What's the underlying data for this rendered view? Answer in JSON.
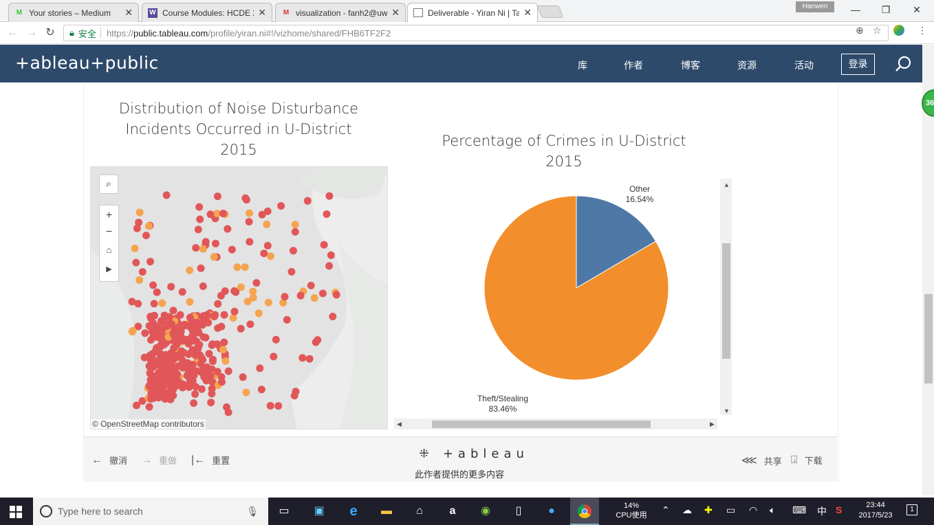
{
  "browser": {
    "tabs": [
      {
        "title": "Your stories – Medium",
        "icon": "medium-icon"
      },
      {
        "title": "Course Modules: HCDE 2",
        "icon": "canvas-w-icon"
      },
      {
        "title": "visualization - fanh2@uw",
        "icon": "gmail-icon"
      },
      {
        "title": "Deliverable - Yiran Ni | Ta",
        "icon": "page-icon"
      }
    ],
    "profile_name": "Hanwen",
    "secure_label": "安全",
    "url_prefix": "https://",
    "url_domain": "public.tableau.com",
    "url_path": "/profile/yiran.ni#!/vizhome/shared/FHB6TF2F2"
  },
  "site_nav": {
    "logo": "+ableau+public",
    "items": [
      "库",
      "作者",
      "博客",
      "资源",
      "活动"
    ],
    "login": "登录"
  },
  "badge": "36",
  "viz": {
    "map_title_lines": [
      "Distribution of Noise Disturbance",
      "Incidents Occurred in U-District",
      "2015"
    ],
    "pie_title_lines": [
      "Percentage of Crimes in U-District",
      "2015"
    ],
    "map_attribution": "© OpenStreetMap contributors",
    "colors": {
      "other": "#4e79a7",
      "theft": "#f28e2b",
      "dot_red": "#e15759",
      "dot_orange": "#f5a44f"
    }
  },
  "chart_data": {
    "type": "pie",
    "title": "Percentage of Crimes in U-District 2015",
    "slices": [
      {
        "name": "Other",
        "label": "16.54%",
        "value": 16.54
      },
      {
        "name": "Theft/Stealing",
        "label": "83.46%",
        "value": 83.46
      }
    ]
  },
  "toolbar": {
    "undo": "撤消",
    "redo": "重做",
    "reset": "重置",
    "brand": "+ableau",
    "more": "此作者提供的更多内容",
    "share": "共享",
    "download": "下载"
  },
  "taskbar": {
    "search_placeholder": "Type here to search",
    "cpu_percent": "14%",
    "cpu_label": "CPU使用",
    "ime": "中",
    "time": "23:44",
    "date": "2017/5/23",
    "notif_count": "1"
  }
}
